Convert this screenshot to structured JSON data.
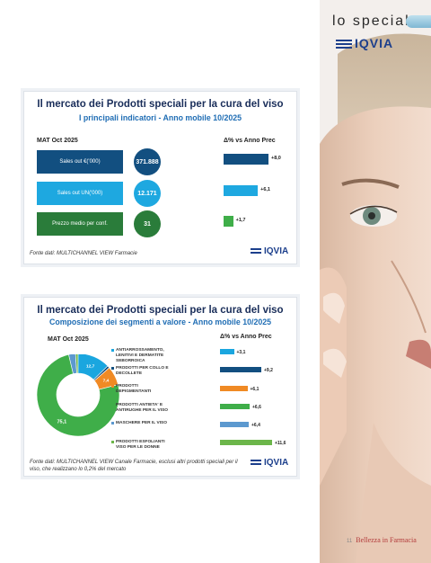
{
  "header": {
    "section_title": "lo speciale",
    "brand": "IQVIA"
  },
  "panel1": {
    "title": "Il mercato dei Prodotti speciali per la cura del viso",
    "subtitle": "I principali indicatori - Anno mobile 10/2025",
    "left_header": "MAT Oct 2025",
    "right_header": "Δ% vs Anno Prec",
    "rows": [
      {
        "label": "Sales out €('000)",
        "value": "371.888",
        "delta": "+8,0",
        "delta_num": 8.0,
        "color": "#124f80"
      },
      {
        "label": "Sales out UN('000)",
        "value": "12.171",
        "delta": "+6,1",
        "delta_num": 6.1,
        "color": "#1ea8e0"
      },
      {
        "label": "Prezzo medio per conf.",
        "value": "31",
        "delta": "+1,7",
        "delta_num": 1.7,
        "color": "#2a7c3a"
      }
    ],
    "delta_colors": [
      "#124f80",
      "#1ea8e0",
      "#3fae49"
    ],
    "source": "Fonte dati: MULTICHANNEL VIEW Farmacie",
    "logo": "IQVIA"
  },
  "panel2": {
    "title": "Il mercato dei Prodotti speciali per la cura del viso",
    "subtitle": "Composizione dei segmenti a valore - Anno mobile 10/2025",
    "left_header": "MAT Oct 2025",
    "right_header": "Δ% vs Anno Prec",
    "source_line1": "Fonte dati: MULTICHANNEL VIEW Canale Farmacie, esclusi altri prodotti speciali per il",
    "source_line2": "viso, che realizzano lo 0,2% del mercato",
    "logo": "IQVIA"
  },
  "chart_data": {
    "type": "pie",
    "categories": [
      "ANTIARROSSAMENTO, LENITIVI E DERMATITE SEBORROICA",
      "PRODOTTI PER COLLO E DECOLLETE",
      "PRODOTTI DEPIGMENTANTI",
      "PRODOTTI ANTIETA' E ANTIRUGHE PER IL VISO",
      "MASCHERE PER IL VISO",
      "PRODOTTI ESFOLIANTI VISO PER LE DONNE"
    ],
    "legend_lines": [
      [
        "ANTIARROSSAMENTO,",
        "LENITIVI E DERMATITE",
        "SEBORROICA"
      ],
      [
        "PRODOTTI PER COLLO E",
        "DECOLLETE"
      ],
      [
        "PRODOTTI",
        "DEPIGMENTANTI"
      ],
      [
        "PRODOTTI ANTIETA' E",
        "ANTIRUGHE PER IL VISO"
      ],
      [
        "MASCHERE PER IL VISO"
      ],
      [
        "PRODOTTI ESFOLIANTI",
        "VISO PER LE DONNE"
      ]
    ],
    "values": [
      12.7,
      0.9,
      7.4,
      75.1,
      2.7,
      1.0
    ],
    "value_labels": [
      "12,7",
      "0,9",
      "7,4",
      "75,1",
      "2,7",
      "1,0"
    ],
    "deltas": [
      3.1,
      9.2,
      6.1,
      6.6,
      6.4,
      11.6
    ],
    "delta_labels": [
      "+3,1",
      "+9,2",
      "+6,1",
      "+6,6",
      "+6,4",
      "+11,6"
    ],
    "colors": [
      "#1aa6df",
      "#124f80",
      "#f08a24",
      "#3fae49",
      "#5c99cf",
      "#6cb64a"
    ]
  },
  "footer": {
    "page": "11",
    "magazine": "Bellezza in Farmacia"
  }
}
